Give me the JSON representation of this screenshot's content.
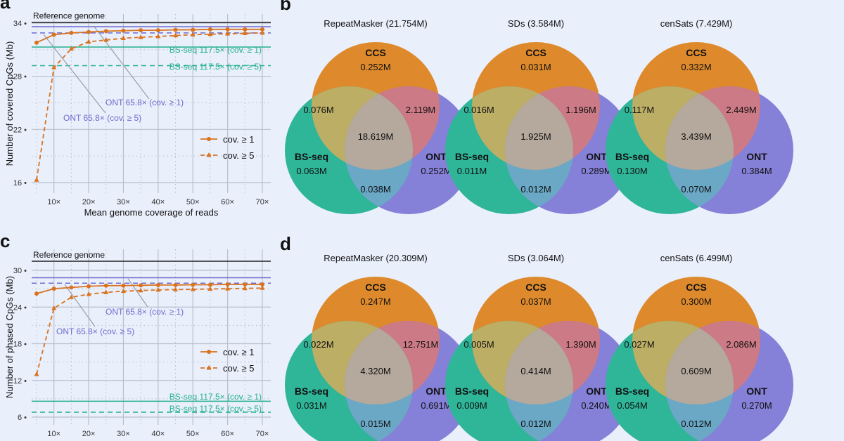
{
  "panels": {
    "a": "a",
    "b": "b",
    "c": "c",
    "d": "d"
  },
  "colors": {
    "series": "#d9731f",
    "reference": "#222222",
    "ont": "#6f6bd0",
    "bsseq": "#22b08f",
    "ccs_circle": "#de8a2c",
    "bs_circle": "#2fb598",
    "ont_circle": "#8580d8",
    "grid": "#b9bfcc"
  },
  "chart_data": [
    {
      "type": "line",
      "panel": "a",
      "xlabel": "Mean genome coverage of reads",
      "ylabel": "Number of covered CpGs (Mb)",
      "xticks": [
        "10×",
        "20×",
        "30×",
        "40×",
        "50×",
        "60×",
        "70×"
      ],
      "xtick_values": [
        10,
        20,
        30,
        40,
        50,
        60,
        70
      ],
      "yticks": [
        16,
        22,
        28,
        34
      ],
      "xlim": [
        4,
        72
      ],
      "ylim": [
        15.5,
        35
      ],
      "grid": true,
      "legend_placement": "bottom-right",
      "x": [
        5,
        10,
        15,
        20,
        25,
        30,
        35,
        40,
        45,
        50,
        55,
        60,
        65,
        70
      ],
      "series": [
        {
          "name": "cov. ≥ 1",
          "style": "solid-circle",
          "values": [
            31.8,
            32.7,
            32.9,
            33.0,
            33.1,
            33.15,
            33.2,
            33.2,
            33.25,
            33.25,
            33.3,
            33.3,
            33.3,
            33.3
          ]
        },
        {
          "name": "cov. ≥ 5",
          "style": "dashed-triangle",
          "values": [
            16.3,
            29.0,
            31.1,
            31.9,
            32.1,
            32.3,
            32.4,
            32.5,
            32.6,
            32.7,
            32.75,
            32.8,
            32.85,
            32.9
          ]
        }
      ],
      "reference_lines": [
        {
          "label": "Reference genome",
          "value": 34.1,
          "color": "reference",
          "dashed": false
        },
        {
          "label": "ONT 65.8× (cov. ≥ 1)",
          "value": 33.6,
          "color": "ont",
          "dashed": false
        },
        {
          "label": "ONT 65.8× (cov. ≥ 5)",
          "value": 32.9,
          "color": "ont",
          "dashed": true
        },
        {
          "label": "BS-seq 117.5× (cov. ≥ 1)",
          "value": 31.3,
          "color": "bsseq",
          "dashed": false
        },
        {
          "label": "BS-seq 117.5× (cov. ≥ 5)",
          "value": 29.2,
          "color": "bsseq",
          "dashed": true
        }
      ]
    },
    {
      "type": "line",
      "panel": "c",
      "xlabel": "",
      "ylabel": "Number of phased CpGs (Mb)",
      "xticks": [
        "10×",
        "20×",
        "30×",
        "40×",
        "50×",
        "60×",
        "70×"
      ],
      "xtick_values": [
        10,
        20,
        30,
        40,
        50,
        60,
        70
      ],
      "yticks": [
        6,
        12,
        18,
        24,
        30
      ],
      "xlim": [
        4,
        72
      ],
      "ylim": [
        5.5,
        32.5
      ],
      "grid": true,
      "legend_placement": "right",
      "x": [
        5,
        10,
        15,
        20,
        25,
        30,
        35,
        40,
        45,
        50,
        55,
        60,
        65,
        70
      ],
      "series": [
        {
          "name": "cov. ≥ 1",
          "style": "solid-circle",
          "values": [
            26.2,
            27.0,
            27.2,
            27.4,
            27.5,
            27.5,
            27.55,
            27.6,
            27.6,
            27.65,
            27.65,
            27.7,
            27.7,
            27.7
          ]
        },
        {
          "name": "cov. ≥ 5",
          "style": "dashed-triangle",
          "values": [
            13.0,
            23.8,
            25.6,
            26.1,
            26.4,
            26.6,
            26.7,
            26.8,
            26.85,
            26.9,
            26.95,
            27.0,
            27.05,
            27.1
          ]
        }
      ],
      "reference_lines": [
        {
          "label": "Reference genome",
          "value": 31.5,
          "color": "reference",
          "dashed": false
        },
        {
          "label": "ONT 65.8× (cov. ≥ 1)",
          "value": 28.8,
          "color": "ont",
          "dashed": false
        },
        {
          "label": "ONT 65.8× (cov. ≥ 5)",
          "value": 27.9,
          "color": "ont",
          "dashed": true
        },
        {
          "label": "BS-seq 117.5× (cov. ≥ 1)",
          "value": 8.6,
          "color": "bsseq",
          "dashed": false
        },
        {
          "label": "BS-seq 117.5× (cov. ≥ 5)",
          "value": 6.8,
          "color": "bsseq",
          "dashed": true
        }
      ]
    }
  ],
  "venn_sets": {
    "ccs": "CCS",
    "bs": "BS-seq",
    "ont": "ONT"
  },
  "venns": [
    {
      "panel": "b",
      "title": "RepeatMasker (21.754M)",
      "ccs": "0.252M",
      "bs": "0.063M",
      "ont": "0.252M",
      "ccs_bs": "0.076M",
      "ccs_ont": "2.119M",
      "bs_ont": "0.038M",
      "all": "18.619M"
    },
    {
      "panel": "b",
      "title": "SDs (3.584M)",
      "ccs": "0.031M",
      "bs": "0.011M",
      "ont": "0.289M",
      "ccs_bs": "0.016M",
      "ccs_ont": "1.196M",
      "bs_ont": "0.012M",
      "all": "1.925M"
    },
    {
      "panel": "b",
      "title": "cenSats (7.429M)",
      "ccs": "0.332M",
      "bs": "0.130M",
      "ont": "0.384M",
      "ccs_bs": "0.117M",
      "ccs_ont": "2.449M",
      "bs_ont": "0.070M",
      "all": "3.439M"
    },
    {
      "panel": "d",
      "title": "RepeatMasker (20.309M)",
      "ccs": "0.247M",
      "bs": "0.031M",
      "ont": "0.691M",
      "ccs_bs": "0.022M",
      "ccs_ont": "12.751M",
      "bs_ont": "0.015M",
      "all": "4.320M"
    },
    {
      "panel": "d",
      "title": "SDs (3.064M)",
      "ccs": "0.037M",
      "bs": "0.009M",
      "ont": "0.240M",
      "ccs_bs": "0.005M",
      "ccs_ont": "1.390M",
      "bs_ont": "0.012M",
      "all": "0.414M"
    },
    {
      "panel": "d",
      "title": "cenSats (6.499M)",
      "ccs": "0.300M",
      "bs": "0.054M",
      "ont": "0.270M",
      "ccs_bs": "0.027M",
      "ccs_ont": "2.086M",
      "bs_ont": "0.012M",
      "all": "0.609M"
    }
  ]
}
